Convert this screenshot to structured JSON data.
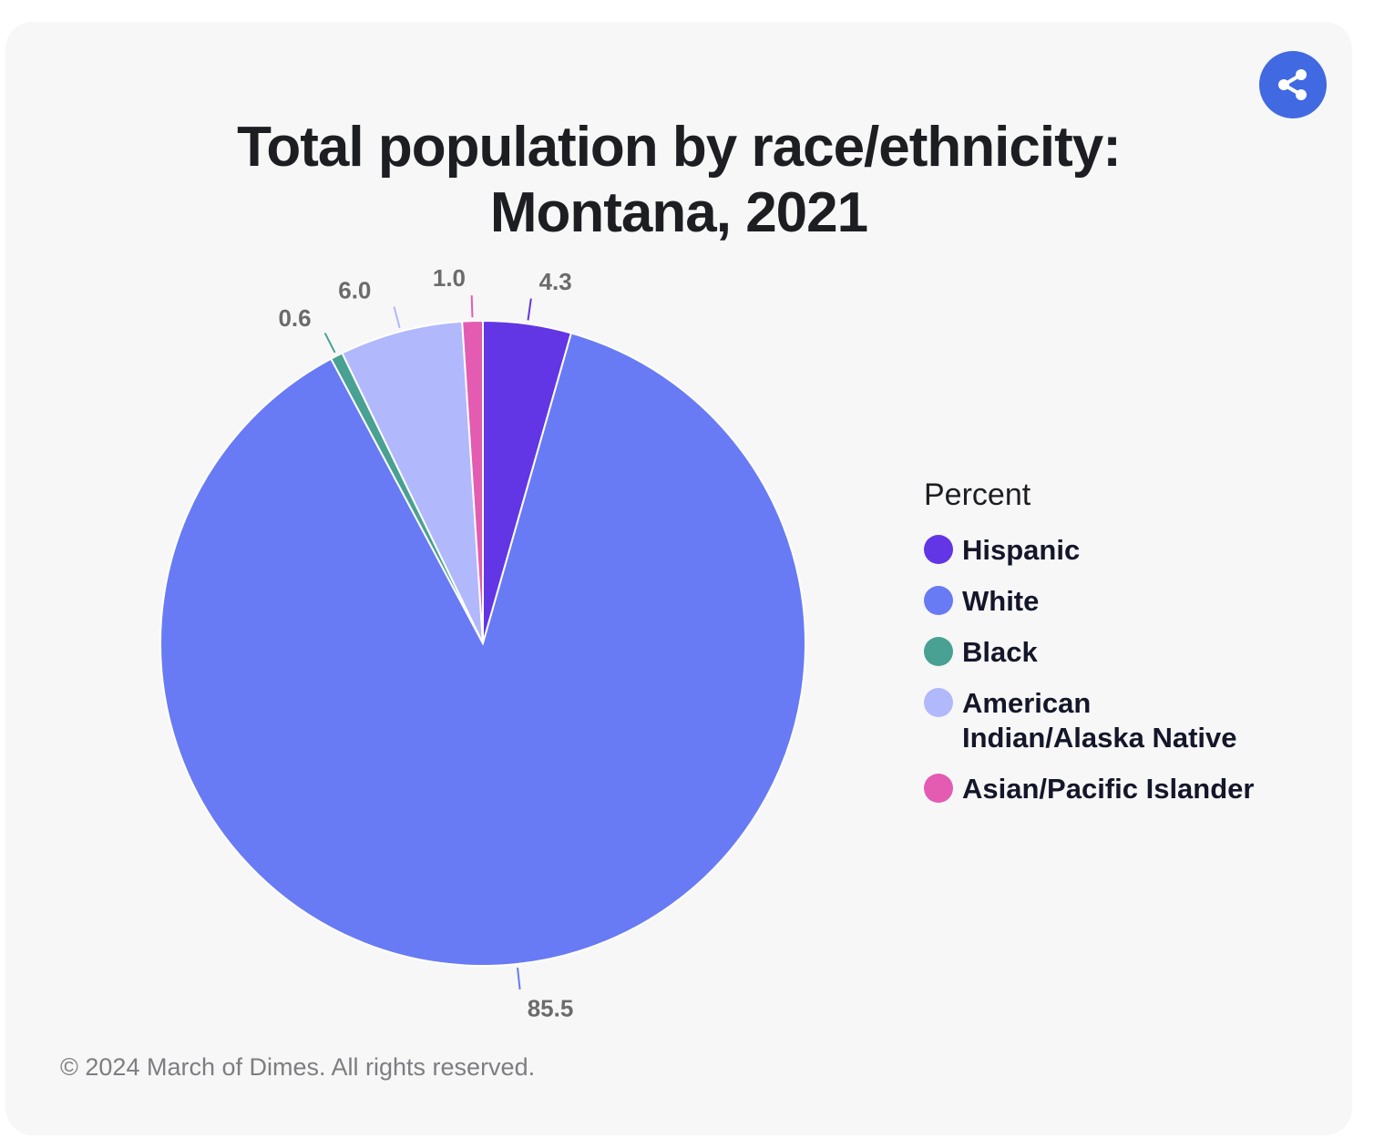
{
  "share": {
    "icon": "share-icon",
    "color": "#4169e1"
  },
  "chart_data": {
    "type": "pie",
    "title_lines": [
      "Total population by race/ethnicity:",
      "Montana, 2021"
    ],
    "legend_title": "Percent",
    "legend_placement": "right",
    "slices": [
      {
        "name": "Hispanic",
        "value": 4.3,
        "label": "4.3",
        "color": "#6236e4"
      },
      {
        "name": "White",
        "value": 85.5,
        "label": "85.5",
        "color": "#687bf4"
      },
      {
        "name": "Black",
        "value": 0.6,
        "label": "0.6",
        "color": "#48a193"
      },
      {
        "name": "American Indian/Alaska Native",
        "value": 6.0,
        "label": "6.0",
        "color": "#b1b8fb"
      },
      {
        "name": "Asian/Pacific Islander",
        "value": 1.0,
        "label": "1.0",
        "color": "#e35cb2"
      }
    ]
  },
  "footer": {
    "copyright": "© 2024 March of Dimes. All rights reserved."
  }
}
